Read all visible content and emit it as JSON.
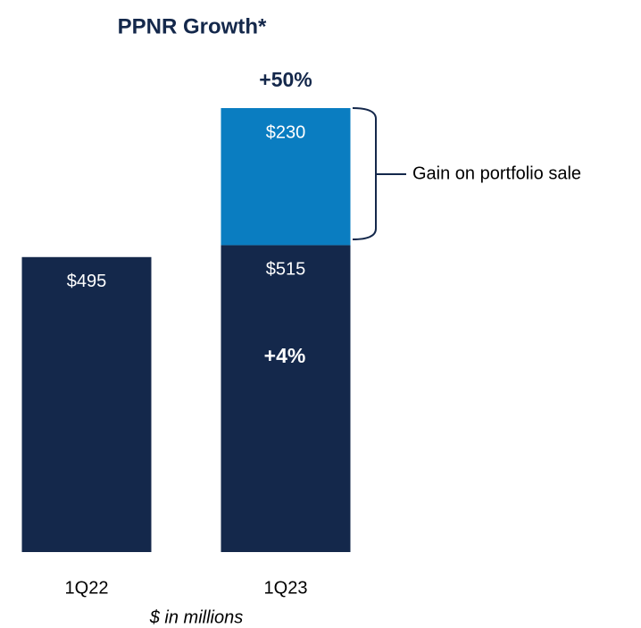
{
  "chart_data": {
    "type": "stacked_bar",
    "title": "PPNR Growth*",
    "subtitle": "$ in millions",
    "categories": [
      "1Q22",
      "1Q23"
    ],
    "series": [
      {
        "name": null,
        "color": "#14284b",
        "values": [
          495,
          515
        ],
        "value_labels": [
          "$495",
          "$515"
        ]
      },
      {
        "name": null,
        "color": "#0a7dc1",
        "values": [
          null,
          230
        ],
        "value_labels": [
          null,
          "$230"
        ]
      }
    ],
    "annotations": [
      "+50%",
      "+4%",
      "Gain on portfolio sale"
    ]
  }
}
